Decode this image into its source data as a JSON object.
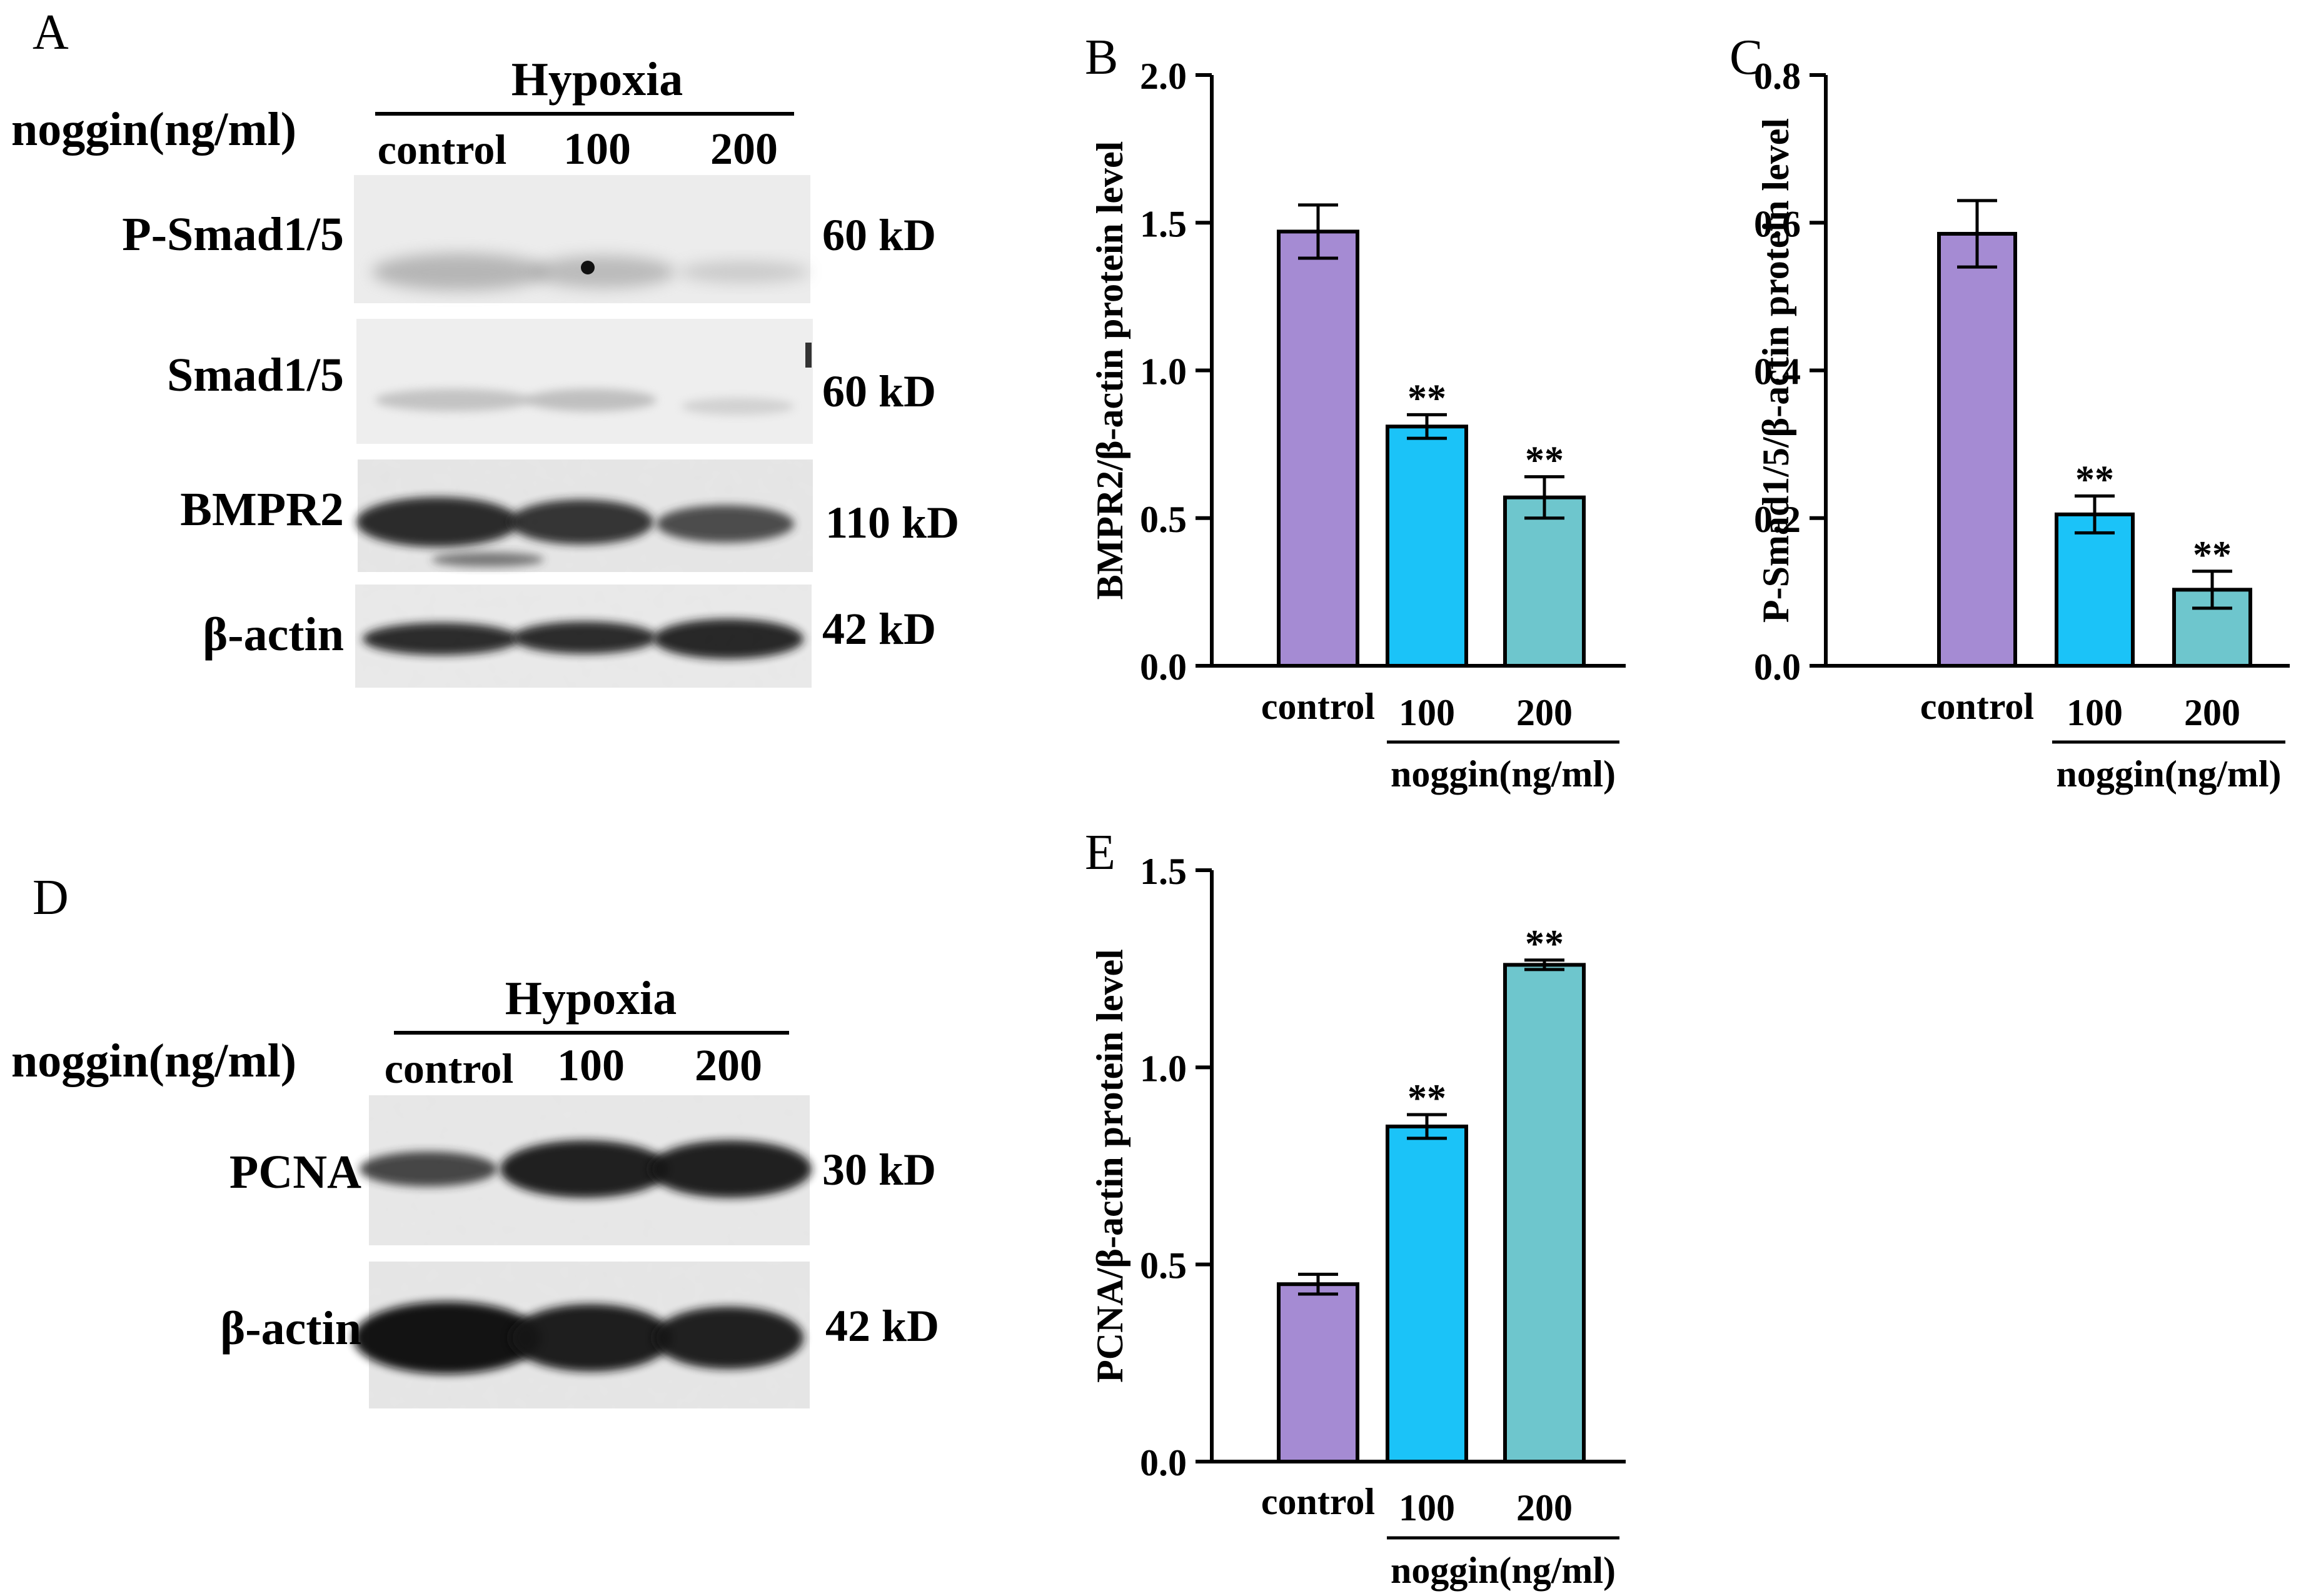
{
  "panels": {
    "A": {
      "letter": "A",
      "condition": "Hypoxia",
      "treatment_label": "noggin(ng/ml)",
      "lanes": [
        "control",
        "100",
        "200"
      ],
      "blots": [
        {
          "protein": "P-Smad1/5",
          "size": "60 kD"
        },
        {
          "protein": "Smad1/5",
          "size": "60 kD"
        },
        {
          "protein": "BMPR2",
          "size": "110 kD"
        },
        {
          "protein": "β-actin",
          "size": "42 kD"
        }
      ]
    },
    "D": {
      "letter": "D",
      "condition": "Hypoxia",
      "treatment_label": "noggin(ng/ml)",
      "lanes": [
        "control",
        "100",
        "200"
      ],
      "blots": [
        {
          "protein": "PCNA",
          "size": "30 kD"
        },
        {
          "protein": "β-actin",
          "size": "42 kD"
        }
      ]
    }
  },
  "colors": {
    "control": "#a58bd3",
    "dose_100": "#1bc3f8",
    "dose_200": "#6ec6cd"
  },
  "chart_data": [
    {
      "panel": "B",
      "type": "bar",
      "categories": [
        "control",
        "100",
        "200"
      ],
      "values": [
        1.47,
        0.81,
        0.57
      ],
      "errors": [
        0.09,
        0.04,
        0.07
      ],
      "significance": [
        "",
        "**",
        "**"
      ],
      "ylabel": "BMPR2/β-actin protein level",
      "xgroup_label": "noggin(ng/ml)",
      "ylim": [
        0,
        2.0
      ],
      "yticks": [
        "0.0",
        "0.5",
        "1.0",
        "1.5",
        "2.0"
      ],
      "grid": false,
      "legend": "none"
    },
    {
      "panel": "C",
      "type": "bar",
      "categories": [
        "control",
        "100",
        "200"
      ],
      "values": [
        0.585,
        0.205,
        0.103
      ],
      "errors": [
        0.045,
        0.025,
        0.025
      ],
      "significance": [
        "",
        "**",
        "**"
      ],
      "ylabel": "P-Smad1/5/β-actin protein level",
      "xgroup_label": "noggin(ng/ml)",
      "ylim": [
        0,
        0.8
      ],
      "yticks": [
        "0.0",
        "0.2",
        "0.4",
        "0.6",
        "0.8"
      ],
      "grid": false,
      "legend": "none"
    },
    {
      "panel": "E",
      "type": "bar",
      "categories": [
        "control",
        "100",
        "200"
      ],
      "values": [
        0.45,
        0.85,
        1.26
      ],
      "errors": [
        0.025,
        0.03,
        0.012
      ],
      "significance": [
        "",
        "**",
        "**"
      ],
      "ylabel": "PCNA/β-actin protein level",
      "xgroup_label": "noggin(ng/ml)",
      "ylim": [
        0,
        1.5
      ],
      "yticks": [
        "0.0",
        "0.5",
        "1.0",
        "1.5"
      ],
      "grid": false,
      "legend": "none"
    }
  ]
}
